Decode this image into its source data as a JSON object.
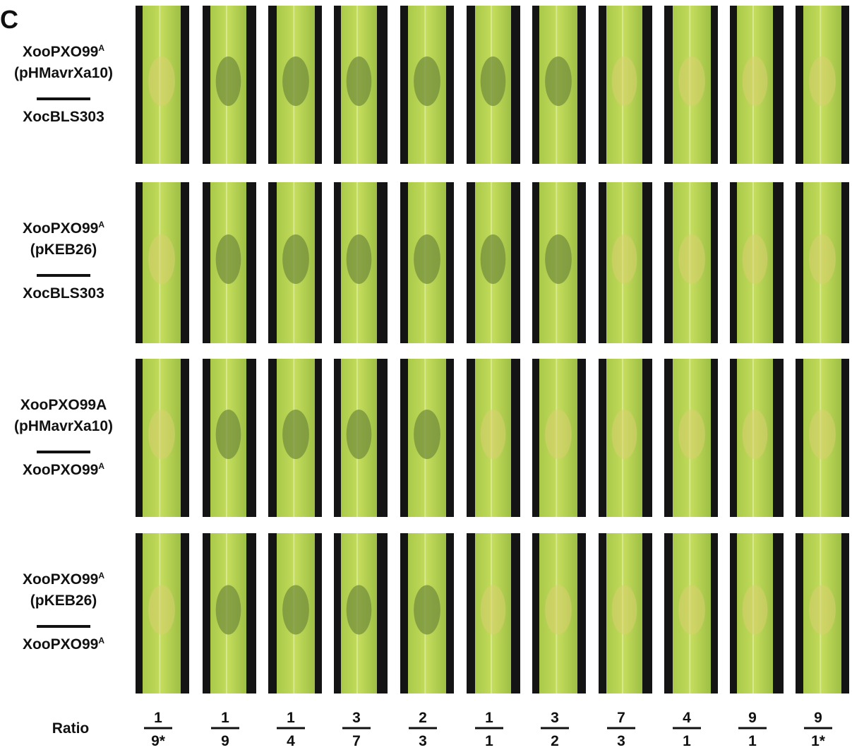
{
  "panel_label": "C",
  "rows": [
    {
      "top_main": "XooPXO99",
      "top_sup": "A",
      "plasmid": "(pHMavrXa10)",
      "bottom": "XocBLS303"
    },
    {
      "top_main": "XooPXO99",
      "top_sup": "A",
      "plasmid": "(pKEB26)",
      "bottom": "XocBLS303"
    },
    {
      "top_main": "XooPXO99A",
      "plasmid": "(pHMavrXa10)",
      "bottom_main": "XooPXO99",
      "bottom_sup": "A"
    },
    {
      "top_main": "XooPXO99",
      "top_sup": "A",
      "plasmid": "(pKEB26)",
      "bottom_main": "XooPXO99",
      "bottom_sup": "A"
    }
  ],
  "ratio_label": "Ratio",
  "ratios": [
    {
      "num": "1",
      "den": "9*"
    },
    {
      "num": "1",
      "den": "9"
    },
    {
      "num": "1",
      "den": "4"
    },
    {
      "num": "3",
      "den": "7"
    },
    {
      "num": "2",
      "den": "3"
    },
    {
      "num": "1",
      "den": "1"
    },
    {
      "num": "3",
      "den": "2"
    },
    {
      "num": "7",
      "den": "3"
    },
    {
      "num": "4",
      "den": "1"
    },
    {
      "num": "9",
      "den": "1"
    },
    {
      "num": "9",
      "den": "1*"
    }
  ]
}
